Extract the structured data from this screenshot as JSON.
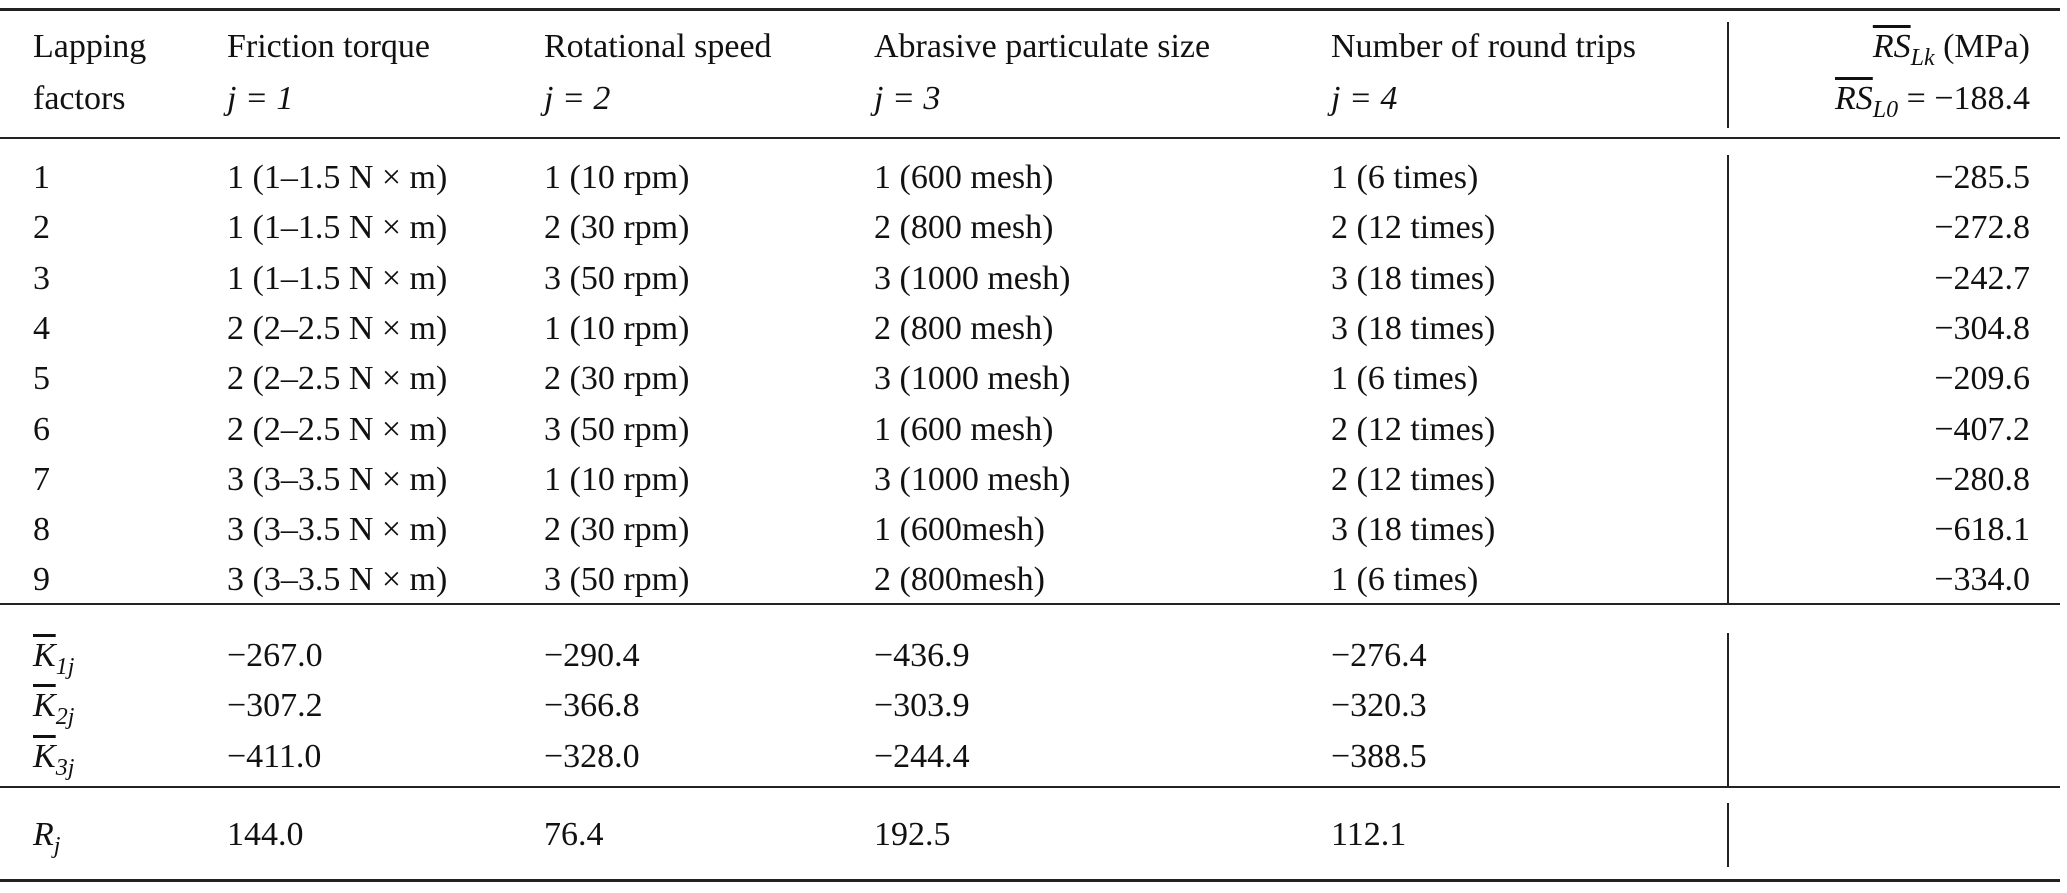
{
  "header": {
    "col0": [
      "Lapping",
      "factors"
    ],
    "col1": [
      "Friction torque",
      "j = 1"
    ],
    "col2": [
      "Rotational speed",
      "j = 2"
    ],
    "col3": [
      "Abrasive particulate size",
      "j = 3"
    ],
    "col4": [
      "Number of round trips",
      "j = 4"
    ],
    "col5": {
      "line1": {
        "sym": "RS",
        "sub": "Lk",
        "rest": " (MPa)"
      },
      "line2": {
        "sym": "RS",
        "sub": "L0",
        "rest": " = −188.4"
      }
    }
  },
  "rows": [
    [
      "1",
      "1 (1–1.5 N × m)",
      "1 (10 rpm)",
      "1 (600 mesh)",
      "1 (6 times)",
      "−285.5"
    ],
    [
      "2",
      "1 (1–1.5 N × m)",
      "2 (30 rpm)",
      "2 (800 mesh)",
      "2 (12 times)",
      "−272.8"
    ],
    [
      "3",
      "1 (1–1.5 N × m)",
      "3 (50 rpm)",
      "3 (1000 mesh)",
      "3 (18 times)",
      "−242.7"
    ],
    [
      "4",
      "2 (2–2.5 N × m)",
      "1 (10 rpm)",
      "2 (800 mesh)",
      "3 (18 times)",
      "−304.8"
    ],
    [
      "5",
      "2 (2–2.5 N × m)",
      "2 (30 rpm)",
      "3 (1000 mesh)",
      "1 (6 times)",
      "−209.6"
    ],
    [
      "6",
      "2 (2–2.5 N × m)",
      "3 (50 rpm)",
      "1 (600 mesh)",
      "2 (12 times)",
      "−407.2"
    ],
    [
      "7",
      "3 (3–3.5 N × m)",
      "1 (10 rpm)",
      "3 (1000 mesh)",
      "2 (12 times)",
      "−280.8"
    ],
    [
      "8",
      "3 (3–3.5 N × m)",
      "2 (30 rpm)",
      "1 (600mesh)",
      "3 (18 times)",
      "−618.1"
    ],
    [
      "9",
      "3 (3–3.5 N × m)",
      "3 (50 rpm)",
      "2 (800mesh)",
      "1 (6 times)",
      "−334.0"
    ]
  ],
  "k_rows": [
    {
      "sym": "K",
      "sub": "1j",
      "values": [
        "−267.0",
        "−290.4",
        "−436.9",
        "−276.4"
      ]
    },
    {
      "sym": "K",
      "sub": "2j",
      "values": [
        "−307.2",
        "−366.8",
        "−303.9",
        "−320.3"
      ]
    },
    {
      "sym": "K",
      "sub": "3j",
      "values": [
        "−411.0",
        "−328.0",
        "−244.4",
        "−388.5"
      ]
    }
  ],
  "r_row": {
    "sym": "R",
    "sub": "j",
    "values": [
      "144.0",
      "76.4",
      "192.5",
      "112.1"
    ]
  }
}
